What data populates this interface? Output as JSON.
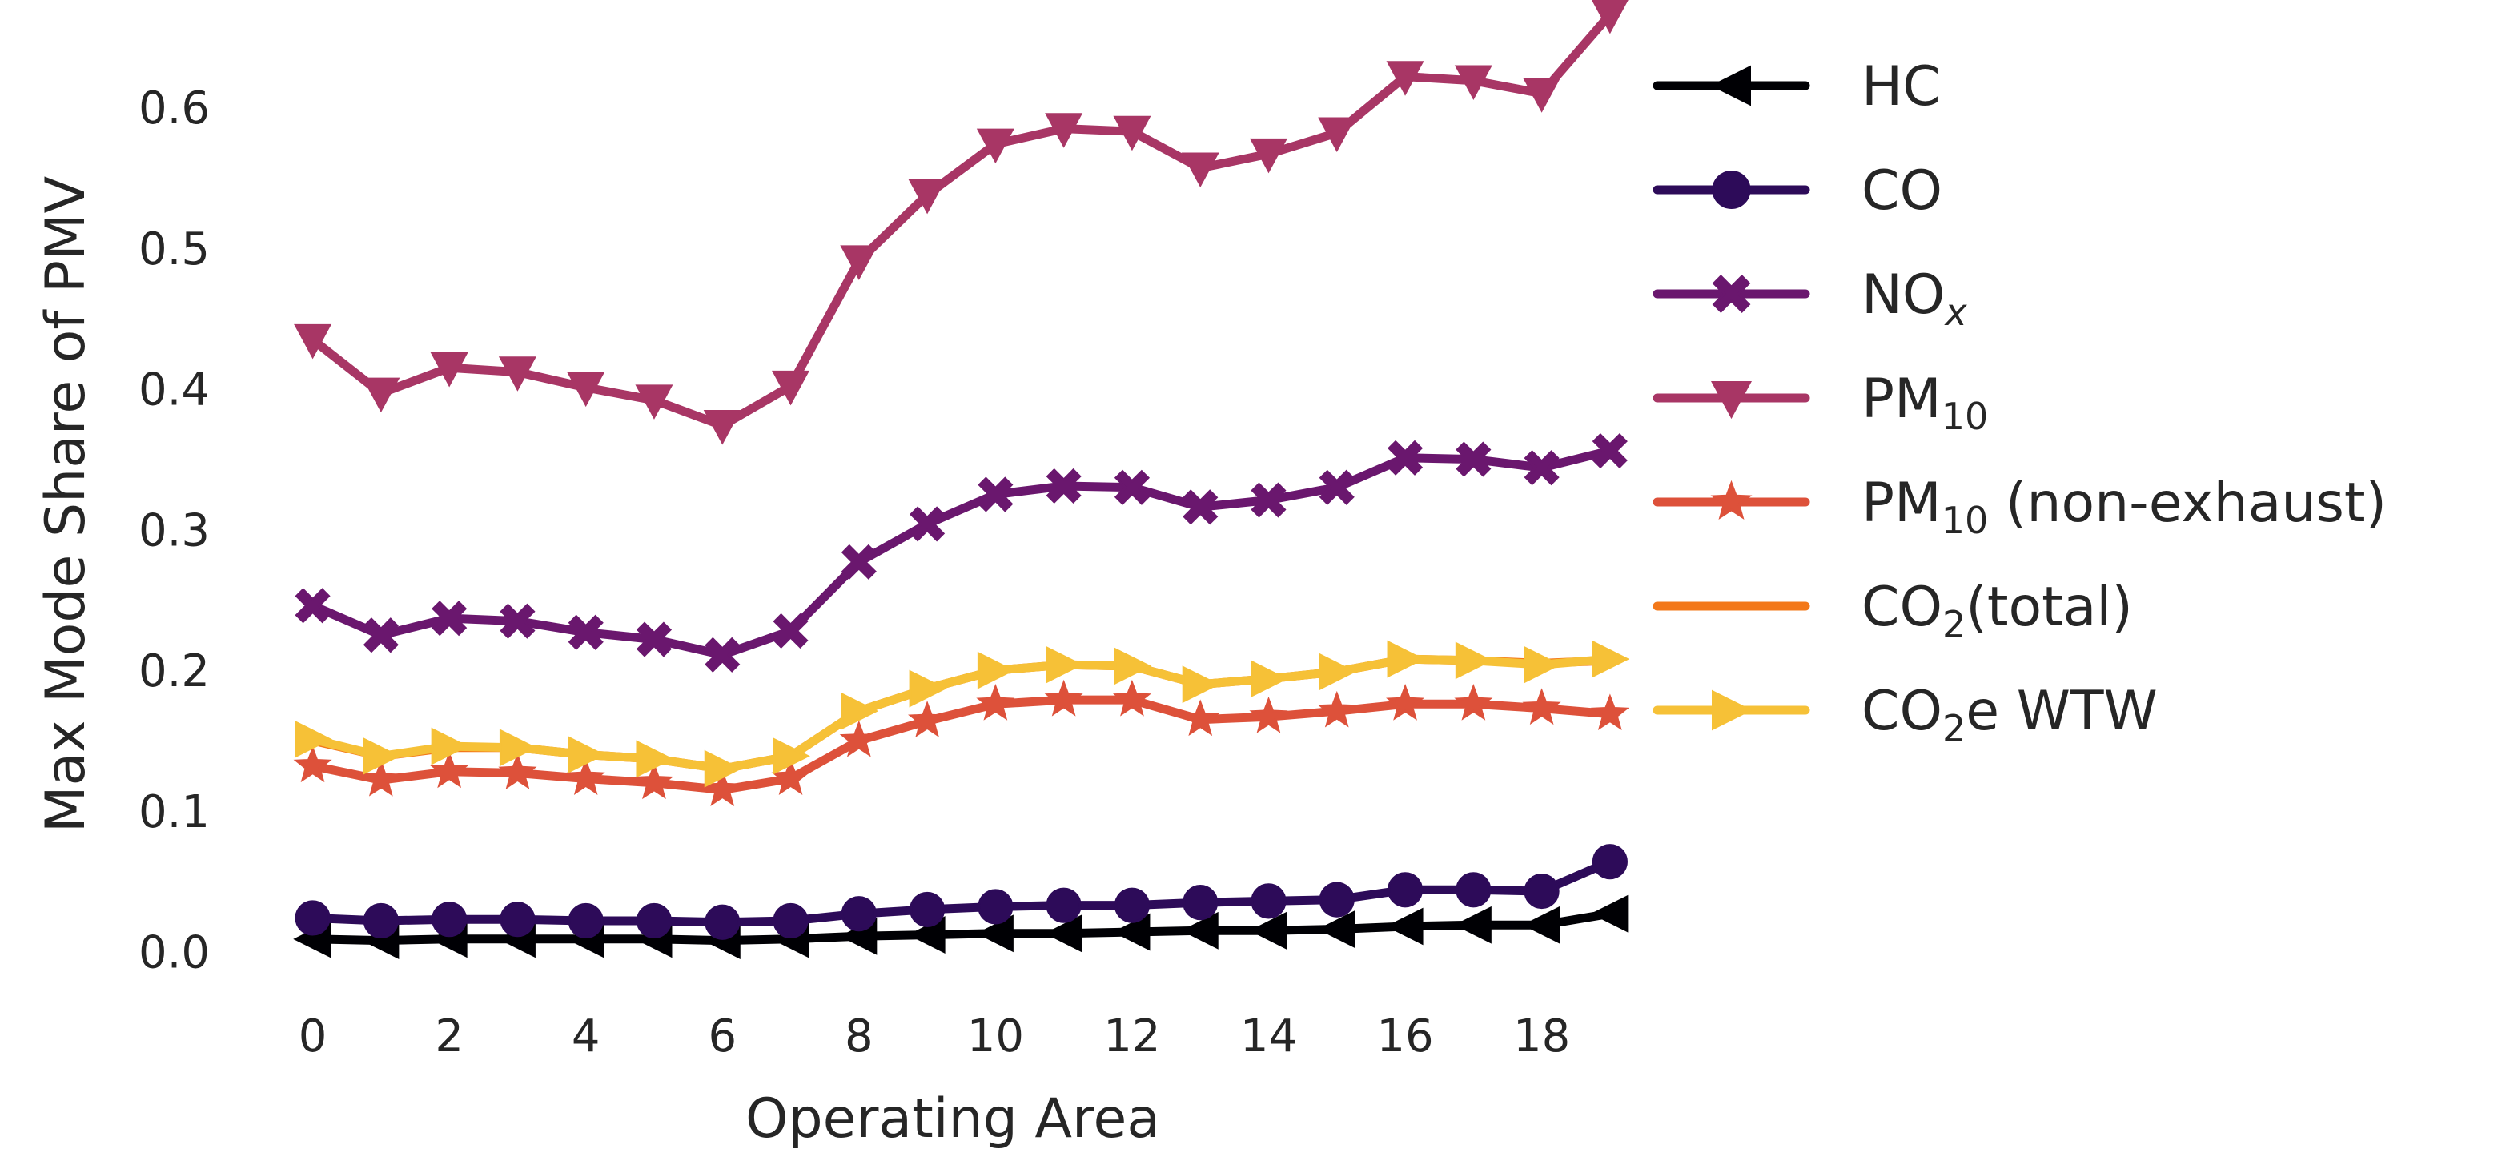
{
  "chart_data": {
    "type": "line",
    "title": "",
    "xlabel": "Operating Area",
    "ylabel": "Max Mode Share of PMV",
    "xlim": [
      -0.3,
      19.4
    ],
    "ylim": [
      -0.015,
      0.665
    ],
    "grid": false,
    "legend_position": "right",
    "x": [
      0,
      1,
      2,
      3,
      4,
      5,
      6,
      7,
      8,
      9,
      10,
      11,
      12,
      13,
      14,
      15,
      16,
      17,
      18,
      19
    ],
    "x_ticks": [
      0,
      2,
      4,
      6,
      8,
      10,
      12,
      14,
      16,
      18
    ],
    "x_tick_labels": [
      "0",
      "2",
      "4",
      "6",
      "8",
      "10",
      "12",
      "14",
      "16",
      "18"
    ],
    "y_ticks": [
      0.0,
      0.1,
      0.2,
      0.3,
      0.4,
      0.5,
      0.6
    ],
    "y_tick_labels": [
      "0.0",
      "0.1",
      "0.2",
      "0.3",
      "0.4",
      "0.5",
      "0.6"
    ],
    "series": [
      {
        "name": "HC",
        "label_main": "HC",
        "label_sub": "",
        "label_sub_italic": false,
        "label_suffix": "",
        "color": "#000004",
        "marker": "triangle-left",
        "values": [
          0.009,
          0.008,
          0.009,
          0.009,
          0.009,
          0.009,
          0.008,
          0.009,
          0.011,
          0.012,
          0.013,
          0.013,
          0.014,
          0.015,
          0.015,
          0.016,
          0.018,
          0.019,
          0.019,
          0.027
        ]
      },
      {
        "name": "CO",
        "label_main": "CO",
        "label_sub": "",
        "label_sub_italic": false,
        "label_suffix": "",
        "color": "#2d0b59",
        "marker": "circle",
        "values": [
          0.024,
          0.022,
          0.023,
          0.023,
          0.022,
          0.022,
          0.021,
          0.022,
          0.027,
          0.03,
          0.032,
          0.033,
          0.033,
          0.035,
          0.036,
          0.037,
          0.044,
          0.044,
          0.043,
          0.064
        ]
      },
      {
        "name": "NOx",
        "label_main": "NO",
        "label_sub": "x",
        "label_sub_italic": true,
        "label_suffix": "",
        "color": "#6a176e",
        "marker": "x-filled",
        "values": [
          0.246,
          0.225,
          0.237,
          0.235,
          0.227,
          0.222,
          0.211,
          0.228,
          0.277,
          0.304,
          0.325,
          0.331,
          0.33,
          0.316,
          0.321,
          0.33,
          0.351,
          0.35,
          0.344,
          0.356
        ]
      },
      {
        "name": "PM10",
        "label_main": "PM",
        "label_sub": "10",
        "label_sub_italic": false,
        "label_suffix": "",
        "color": "#a83665",
        "marker": "triangle-down",
        "values": [
          0.435,
          0.397,
          0.415,
          0.412,
          0.401,
          0.392,
          0.374,
          0.402,
          0.491,
          0.538,
          0.574,
          0.585,
          0.583,
          0.557,
          0.567,
          0.582,
          0.622,
          0.619,
          0.61,
          0.666
        ]
      },
      {
        "name": "PM10 (non-exhaust)",
        "label_main": "PM",
        "label_sub": "10",
        "label_sub_italic": false,
        "label_suffix": " (non-exhaust)",
        "color": "#dd513a",
        "marker": "star",
        "values": [
          0.132,
          0.122,
          0.128,
          0.127,
          0.123,
          0.12,
          0.115,
          0.123,
          0.15,
          0.164,
          0.176,
          0.179,
          0.179,
          0.165,
          0.167,
          0.171,
          0.176,
          0.176,
          0.173,
          0.169
        ]
      },
      {
        "name": "CO2(total)",
        "label_main": "CO",
        "label_sub": "2",
        "label_sub_italic": false,
        "label_suffix": "(total)",
        "color": "#f37819",
        "marker": "none",
        "values": [
          0.15,
          0.139,
          0.145,
          0.145,
          0.14,
          0.137,
          0.13,
          0.139,
          0.171,
          0.187,
          0.2,
          0.204,
          0.203,
          0.19,
          0.194,
          0.199,
          0.208,
          0.207,
          0.205,
          0.207
        ]
      },
      {
        "name": "CO2e WTW",
        "label_main": "CO",
        "label_sub": "2",
        "label_sub_italic": false,
        "label_suffix": "e WTW",
        "color": "#f6c137",
        "marker": "triangle-right",
        "values": [
          0.151,
          0.139,
          0.146,
          0.145,
          0.14,
          0.137,
          0.13,
          0.139,
          0.171,
          0.187,
          0.2,
          0.204,
          0.203,
          0.19,
          0.194,
          0.199,
          0.208,
          0.207,
          0.204,
          0.208
        ]
      }
    ]
  }
}
